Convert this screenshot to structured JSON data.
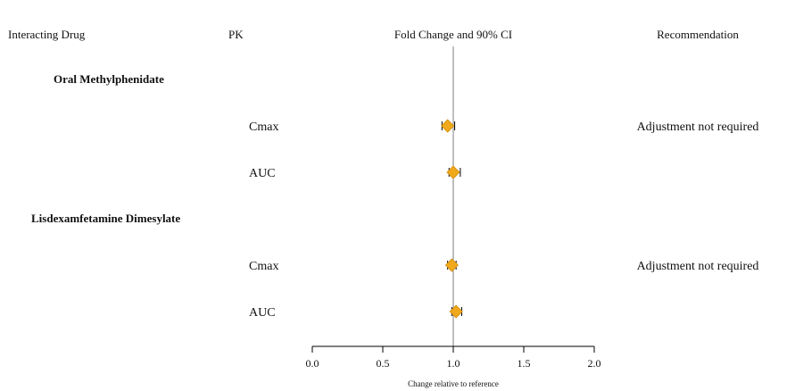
{
  "headers": {
    "drug": "Interacting Drug",
    "pk": "PK",
    "ci": "Fold Change and 90% CI",
    "rec": "Recommendation"
  },
  "colors": {
    "marker": "#F0A91C",
    "marker_edge": "#D08A0A",
    "line": "#000000",
    "ref_line": "#7F7F7F"
  },
  "chart_data": {
    "type": "forest",
    "title": "",
    "xlabel": "Change relative to reference",
    "xlim": [
      0.0,
      2.0
    ],
    "xticks": [
      "0.0",
      "0.5",
      "1.0",
      "1.5",
      "2.0"
    ],
    "reference_line": 1.0,
    "groups": [
      {
        "name": "Oral Methylphenidate",
        "rows": [
          {
            "pk": "Cmax",
            "estimate": 0.96,
            "ci": [
              0.92,
              1.01
            ],
            "recommendation": "Adjustment not required"
          },
          {
            "pk": "AUC",
            "estimate": 1.0,
            "ci": [
              0.97,
              1.05
            ],
            "recommendation": ""
          }
        ]
      },
      {
        "name": "Lisdexamfetamine Dimesylate",
        "rows": [
          {
            "pk": "Cmax",
            "estimate": 0.99,
            "ci": [
              0.96,
              1.02
            ],
            "recommendation": "Adjustment not required"
          },
          {
            "pk": "AUC",
            "estimate": 1.02,
            "ci": [
              0.99,
              1.06
            ],
            "recommendation": ""
          }
        ]
      }
    ]
  }
}
